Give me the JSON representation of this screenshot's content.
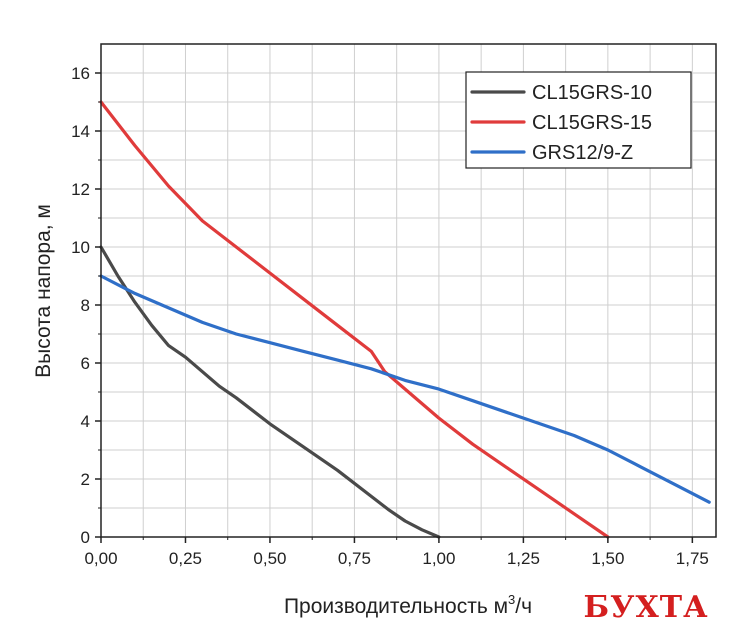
{
  "chart_data": {
    "type": "line",
    "title": "",
    "xlabel": "Производительность м³/ч",
    "xlabel_main": "Производительность м",
    "xlabel_sup": "3",
    "xlabel_tail": "/ч",
    "ylabel": "Высота напора, м",
    "xlim": [
      0,
      1.82
    ],
    "ylim": [
      0,
      17
    ],
    "xticks": [
      0,
      0.25,
      0.5,
      0.75,
      1.0,
      1.25,
      1.5,
      1.75
    ],
    "xtick_labels": [
      "0,00",
      "0,25",
      "0,50",
      "0,75",
      "1,00",
      "1,25",
      "1,50",
      "1,75"
    ],
    "yticks": [
      0,
      2,
      4,
      6,
      8,
      10,
      12,
      14,
      16
    ],
    "ytick_labels": [
      "0",
      "2",
      "4",
      "6",
      "8",
      "10",
      "12",
      "14",
      "16"
    ],
    "grid": true,
    "legend_position": "top-right",
    "series": [
      {
        "name": "CL15GRS-10",
        "color": "#4a4a4a",
        "x": [
          0,
          0.05,
          0.1,
          0.15,
          0.2,
          0.25,
          0.3,
          0.35,
          0.4,
          0.5,
          0.6,
          0.7,
          0.8,
          0.85,
          0.9,
          0.95,
          1.0
        ],
        "y": [
          10,
          9.0,
          8.1,
          7.3,
          6.6,
          6.2,
          5.7,
          5.2,
          4.8,
          3.9,
          3.1,
          2.3,
          1.4,
          0.95,
          0.55,
          0.25,
          0
        ]
      },
      {
        "name": "CL15GRS-15",
        "color": "#e03b3b",
        "x": [
          0,
          0.1,
          0.2,
          0.25,
          0.3,
          0.4,
          0.5,
          0.6,
          0.7,
          0.8,
          0.84,
          0.9,
          1.0,
          1.1,
          1.2,
          1.3,
          1.4,
          1.5
        ],
        "y": [
          15,
          13.5,
          12.1,
          11.5,
          10.9,
          10.0,
          9.1,
          8.2,
          7.3,
          6.4,
          5.7,
          5.1,
          4.1,
          3.2,
          2.4,
          1.6,
          0.8,
          0
        ]
      },
      {
        "name": "GRS12/9-Z",
        "color": "#2f6fc8",
        "x": [
          0,
          0.1,
          0.2,
          0.3,
          0.4,
          0.5,
          0.6,
          0.7,
          0.8,
          0.9,
          1.0,
          1.1,
          1.2,
          1.3,
          1.4,
          1.5,
          1.6,
          1.7,
          1.8
        ],
        "y": [
          9.0,
          8.4,
          7.9,
          7.4,
          7.0,
          6.7,
          6.4,
          6.1,
          5.8,
          5.4,
          5.1,
          4.7,
          4.3,
          3.9,
          3.5,
          3.0,
          2.4,
          1.8,
          1.2
        ]
      }
    ]
  },
  "watermark": {
    "text": "БУХТА",
    "color": "#d41f1f"
  }
}
